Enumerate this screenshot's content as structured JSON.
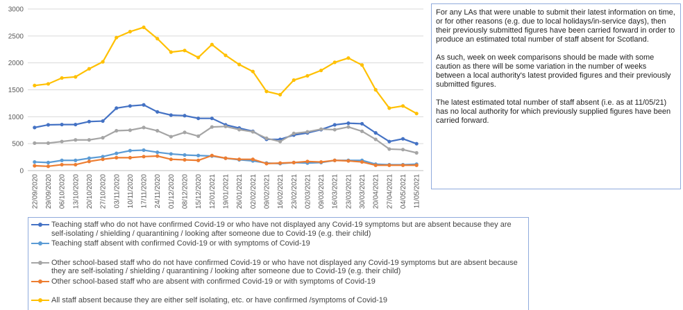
{
  "chart_data": {
    "type": "line",
    "x": [
      "22/09/2020",
      "29/09/2020",
      "06/10/2020",
      "13/10/2020",
      "20/10/2020",
      "27/10/2020",
      "03/11/2020",
      "10/11/2020",
      "17/11/2020",
      "24/11/2020",
      "01/12/2020",
      "08/12/2020",
      "15/12/2020",
      "12/01/2021",
      "19/01/2021",
      "26/01/2021",
      "02/02/2021",
      "09/02/2021",
      "16/02/2021",
      "23/02/2021",
      "02/03/2021",
      "09/03/2021",
      "16/03/2021",
      "23/03/2021",
      "30/03/2021",
      "20/04/2021",
      "27/04/2021",
      "04/05/2021",
      "11/05/2021"
    ],
    "series": [
      {
        "name": "Teaching staff who do not have confirmed Covid-19 or who have not displayed any Covid-19 symptoms but are absent because they are self-isolating / shielding / quarantining / looking after someone due to Covid-19 (e.g. their child)",
        "color": "#4472c4",
        "values": [
          800,
          850,
          855,
          855,
          910,
          920,
          1160,
          1200,
          1220,
          1090,
          1030,
          1020,
          970,
          970,
          850,
          790,
          730,
          580,
          580,
          660,
          700,
          760,
          850,
          880,
          870,
          700,
          540,
          590,
          500
        ]
      },
      {
        "name": "Teaching staff absent with confirmed Covid-19 or with symptoms of Covid-19",
        "color": "#5b9bd5",
        "values": [
          160,
          150,
          190,
          190,
          230,
          260,
          320,
          370,
          380,
          340,
          310,
          290,
          280,
          270,
          230,
          200,
          180,
          140,
          130,
          150,
          140,
          150,
          190,
          190,
          190,
          120,
          110,
          110,
          120
        ]
      },
      {
        "name": "Other school-based staff who do not have confirmed Covid-19 or who have not displayed any Covid-19 symptoms but are absent because they are self-isolating / shielding / quarantining / looking after someone due to Covid-19 (e.g. their child)",
        "color": "#a5a5a5",
        "values": [
          510,
          510,
          540,
          570,
          570,
          610,
          740,
          750,
          800,
          740,
          630,
          710,
          640,
          810,
          820,
          760,
          720,
          600,
          540,
          690,
          720,
          770,
          760,
          810,
          730,
          580,
          400,
          390,
          330
        ]
      },
      {
        "name": "Other school-based staff who are absent with confirmed Covid-19 or with symptoms of Covid-19",
        "color": "#ed7d31",
        "values": [
          90,
          80,
          110,
          110,
          170,
          210,
          240,
          240,
          260,
          270,
          210,
          200,
          190,
          280,
          230,
          210,
          210,
          130,
          140,
          150,
          170,
          160,
          190,
          180,
          160,
          100,
          100,
          100,
          100
        ]
      },
      {
        "name": "All staff absent because they are either self isolating, etc. or have confirmed /symptoms of Covid-19",
        "color": "#ffc000",
        "values": [
          1580,
          1610,
          1720,
          1740,
          1890,
          2020,
          2470,
          2580,
          2660,
          2450,
          2200,
          2230,
          2100,
          2340,
          2140,
          1970,
          1840,
          1470,
          1410,
          1680,
          1760,
          1860,
          2010,
          2090,
          1960,
          1500,
          1160,
          1200,
          1060
        ]
      }
    ],
    "ylim": [
      0,
      3000
    ],
    "yticks": [
      0,
      500,
      1000,
      1500,
      2000,
      2500,
      3000
    ],
    "grid": true
  },
  "notes": [
    "For any LAs that were unable to submit their latest information on time, or for other reasons (e.g. due to local holidays/in-service days), then their previously submitted figures have been carried forward in order to produce an estimated total number of staff absent for Scotland.",
    "As such, week on week comparisons should be made with some caution as there will be some variation in the number of weeks between a local authority's latest provided figures and their previously submitted figures.",
    "The latest estimated total number of staff absent (i.e. as at 11/05/21) has no local authority for which previously supplied figures have been carried forward."
  ]
}
